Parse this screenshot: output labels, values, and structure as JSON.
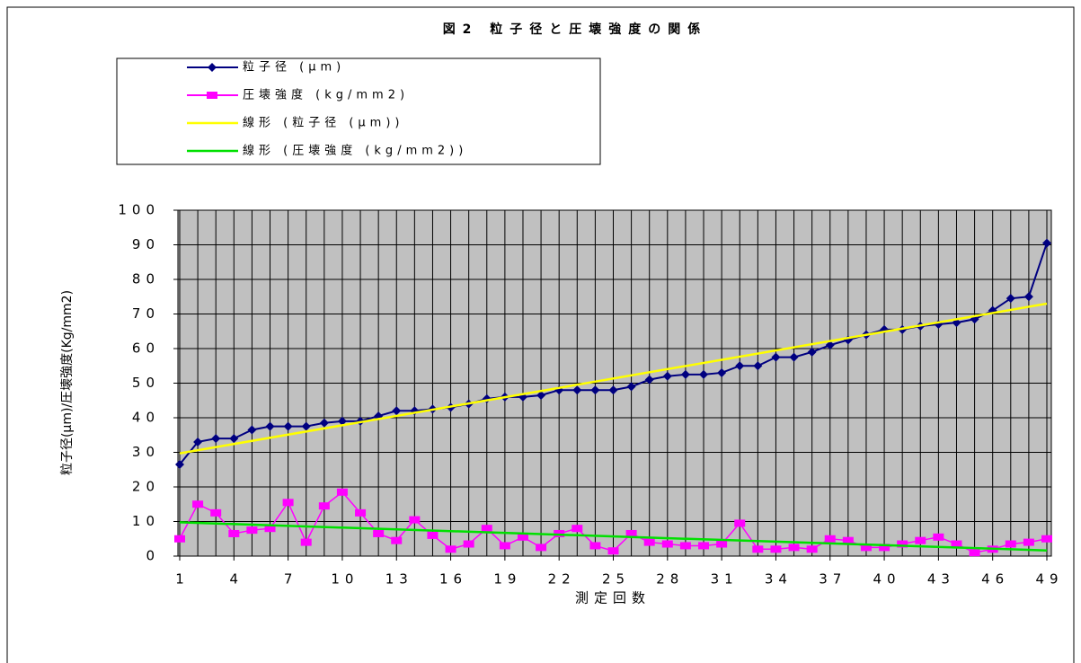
{
  "chart_data": {
    "type": "line",
    "title": "図2 粒子径と圧壊強度の関係",
    "x_label": "測定回数",
    "y_label": "粒子径(μm)/圧壊強度(Kg/mm2)",
    "x": [
      1,
      2,
      3,
      4,
      5,
      6,
      7,
      8,
      9,
      10,
      11,
      12,
      13,
      14,
      15,
      16,
      17,
      18,
      19,
      20,
      21,
      22,
      23,
      24,
      25,
      26,
      27,
      28,
      29,
      30,
      31,
      32,
      33,
      34,
      35,
      36,
      37,
      38,
      39,
      40,
      41,
      42,
      43,
      44,
      45,
      46,
      47,
      48,
      49
    ],
    "xlim": [
      1,
      49
    ],
    "xticks": [
      1,
      4,
      7,
      10,
      13,
      16,
      19,
      22,
      25,
      28,
      31,
      34,
      37,
      40,
      43,
      46,
      49
    ],
    "ylim": [
      0,
      100
    ],
    "yticks": [
      0,
      10,
      20,
      30,
      40,
      50,
      60,
      70,
      80,
      90,
      100
    ],
    "grid": true,
    "series": [
      {
        "name": "粒子径 (μm)",
        "color": "#000080",
        "marker": "diamond",
        "values": [
          26.5,
          33,
          34,
          34,
          36.5,
          37.5,
          37.5,
          37.5,
          38.5,
          39,
          39,
          40.5,
          42,
          42,
          42.5,
          43,
          44,
          45.5,
          46,
          46,
          46.5,
          48,
          48,
          48,
          48,
          49,
          51,
          52,
          52.5,
          52.5,
          53,
          55,
          55,
          57.5,
          57.5,
          59,
          61,
          62.5,
          64,
          65.5,
          65.5,
          66.5,
          67,
          67.5,
          68.5,
          71,
          74.5,
          75,
          90.5
        ],
        "trendline": {
          "name": "線形 (粒子径 (μm))",
          "color": "#ffff00"
        }
      },
      {
        "name": "圧壊強度 (kg/mm2)",
        "color": "#ff00ff",
        "marker": "square",
        "values": [
          5,
          15,
          12.5,
          6.5,
          7.5,
          8,
          15.5,
          4,
          14.5,
          18.5,
          12.5,
          6.5,
          4.5,
          10.5,
          6,
          2,
          3.5,
          8,
          3,
          5.5,
          2.5,
          6.5,
          8,
          3,
          1.5,
          6.5,
          4,
          3.5,
          3,
          3,
          3.5,
          9.5,
          2,
          2,
          2.5,
          2,
          5,
          4.5,
          2.5,
          2.5,
          3.5,
          4.5,
          5.5,
          3.5,
          1,
          2,
          3.5,
          4,
          5
        ],
        "trendline": {
          "name": "線形 (圧壊強度 (kg/mm2))",
          "color": "#00e000"
        }
      }
    ]
  }
}
